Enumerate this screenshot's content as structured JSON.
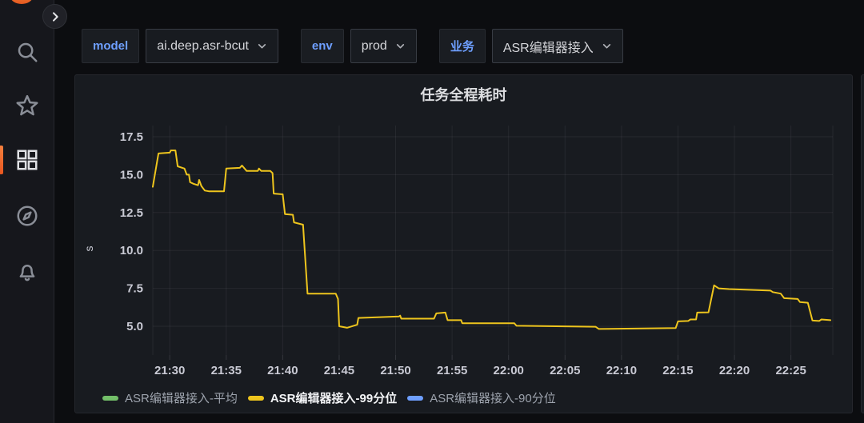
{
  "sidebar": {
    "logo": "grafana-logo",
    "items": [
      {
        "id": "search",
        "icon": "search-icon",
        "active": false
      },
      {
        "id": "starred",
        "icon": "star-icon",
        "active": false
      },
      {
        "id": "dashboards",
        "icon": "grid-icon",
        "active": true
      },
      {
        "id": "explore",
        "icon": "compass-icon",
        "active": false
      },
      {
        "id": "alerting",
        "icon": "bell-icon",
        "active": false
      }
    ],
    "expand_icon": "chevron-right"
  },
  "filters": [
    {
      "label": "model",
      "value": "ai.deep.asr-bcut"
    },
    {
      "label": "env",
      "value": "prod"
    },
    {
      "label": "业务",
      "value": "ASR编辑器接入"
    }
  ],
  "chart_data": {
    "type": "line",
    "title": "任务全程耗时",
    "ylabel": "s",
    "grid": true,
    "legend_position": "bottom",
    "ylim": [
      3.1,
      18.0
    ],
    "y_ticks": [
      "5.0",
      "7.5",
      "10.0",
      "12.5",
      "15.0",
      "17.5"
    ],
    "x_ticks": [
      "21:30",
      "21:35",
      "21:40",
      "21:45",
      "21:50",
      "21:55",
      "22:00",
      "22:05",
      "22:10",
      "22:15",
      "22:20",
      "22:25"
    ],
    "x_tick_step_minutes": 5,
    "series": [
      {
        "name": "ASR编辑器接入-平均",
        "color": "#73bf69",
        "selected": false,
        "hidden": true,
        "points": []
      },
      {
        "name": "ASR编辑器接入-99分位",
        "color": "#eec51d",
        "selected": true,
        "hidden": false,
        "points": [
          [
            -1.5,
            14.2
          ],
          [
            -1.0,
            16.4
          ],
          [
            0.0,
            16.45
          ],
          [
            0.1,
            16.6
          ],
          [
            0.5,
            16.6
          ],
          [
            0.7,
            15.55
          ],
          [
            1.3,
            15.4
          ],
          [
            1.5,
            15.0
          ],
          [
            1.7,
            15.0
          ],
          [
            1.8,
            14.5
          ],
          [
            2.1,
            14.4
          ],
          [
            2.5,
            14.3
          ],
          [
            2.6,
            14.65
          ],
          [
            2.8,
            14.25
          ],
          [
            3.1,
            13.95
          ],
          [
            3.5,
            13.9
          ],
          [
            4.8,
            13.9
          ],
          [
            5.0,
            15.4
          ],
          [
            6.2,
            15.45
          ],
          [
            6.4,
            15.6
          ],
          [
            6.8,
            15.25
          ],
          [
            7.8,
            15.25
          ],
          [
            7.9,
            15.4
          ],
          [
            8.1,
            15.25
          ],
          [
            8.9,
            15.25
          ],
          [
            9.1,
            15.1
          ],
          [
            9.2,
            13.75
          ],
          [
            10.0,
            13.7
          ],
          [
            10.2,
            12.4
          ],
          [
            10.9,
            12.35
          ],
          [
            11.0,
            11.85
          ],
          [
            11.8,
            11.7
          ],
          [
            12.2,
            7.15
          ],
          [
            14.7,
            7.15
          ],
          [
            14.9,
            6.8
          ],
          [
            15.0,
            5.0
          ],
          [
            15.7,
            4.9
          ],
          [
            16.6,
            5.1
          ],
          [
            16.7,
            5.55
          ],
          [
            20.3,
            5.65
          ],
          [
            20.4,
            5.7
          ],
          [
            20.5,
            5.5
          ],
          [
            23.4,
            5.5
          ],
          [
            23.6,
            5.85
          ],
          [
            24.4,
            5.9
          ],
          [
            24.6,
            5.4
          ],
          [
            25.8,
            5.4
          ],
          [
            25.9,
            5.2
          ],
          [
            30.5,
            5.2
          ],
          [
            30.7,
            5.03
          ],
          [
            37.7,
            4.97
          ],
          [
            38.0,
            4.82
          ],
          [
            44.8,
            4.88
          ],
          [
            45.0,
            5.32
          ],
          [
            45.9,
            5.35
          ],
          [
            46.1,
            5.45
          ],
          [
            46.6,
            5.45
          ],
          [
            46.7,
            5.9
          ],
          [
            47.7,
            5.92
          ],
          [
            48.2,
            7.7
          ],
          [
            48.6,
            7.5
          ],
          [
            49.5,
            7.45
          ],
          [
            53.2,
            7.35
          ],
          [
            53.4,
            7.25
          ],
          [
            54.1,
            7.15
          ],
          [
            54.4,
            6.85
          ],
          [
            55.6,
            6.8
          ],
          [
            55.8,
            6.6
          ],
          [
            56.5,
            6.55
          ],
          [
            56.9,
            5.38
          ],
          [
            57.5,
            5.35
          ],
          [
            57.7,
            5.45
          ],
          [
            58.5,
            5.4
          ]
        ]
      },
      {
        "name": "ASR编辑器接入-90分位",
        "color": "#6e9fff",
        "selected": false,
        "hidden": true,
        "points": []
      }
    ]
  }
}
